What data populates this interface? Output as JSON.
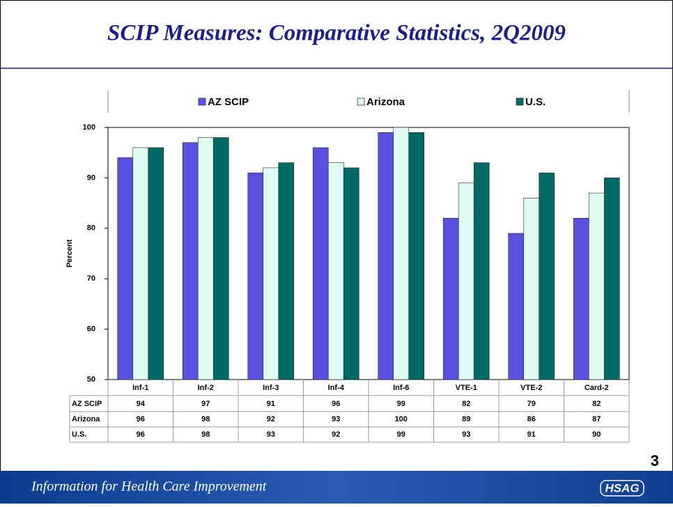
{
  "chart_data": {
    "type": "bar",
    "title": "SCIP Measures: Comparative Statistics, 2Q2009",
    "ylabel": "Percent",
    "categories": [
      "Inf-1",
      "Inf-2",
      "Inf-3",
      "Inf-4",
      "Inf-6",
      "VTE-1",
      "VTE-2",
      "Card-2"
    ],
    "series": [
      {
        "name": "AZ SCIP",
        "color": "#5a50e0",
        "values": [
          94,
          97,
          91,
          96,
          99,
          82,
          79,
          82
        ]
      },
      {
        "name": "Arizona",
        "color": "#dffcf4",
        "values": [
          96,
          98,
          92,
          93,
          100,
          89,
          86,
          87
        ]
      },
      {
        "name": "U.S.",
        "color": "#006b66",
        "values": [
          96,
          98,
          93,
          92,
          99,
          93,
          91,
          90
        ]
      }
    ],
    "ylim": [
      50,
      100
    ],
    "yticks": [
      50,
      60,
      70,
      80,
      90,
      100
    ],
    "grid": false,
    "legend": "top"
  },
  "slide": {
    "page_number": "3",
    "footer": "Information for Health Care Improvement",
    "logo": "HSAG"
  }
}
